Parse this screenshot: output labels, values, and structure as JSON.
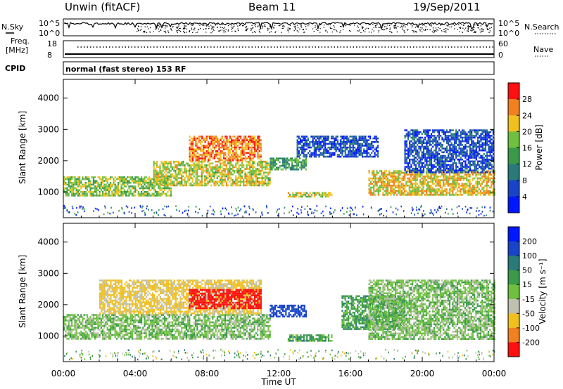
{
  "header": {
    "radar": "Unwin (fitACF)",
    "beam": "Beam 11",
    "date": "19/Sep/2011"
  },
  "aux_panels": {
    "nsky_label": "N.Sky",
    "nsearch_label": "N.Search",
    "nsky_ticks": [
      "10^5",
      "10^0"
    ],
    "nsearch_ticks": [
      "10^5",
      "10^0"
    ],
    "freq_label_line1": "Freq.",
    "freq_label_line2": "[MHz]",
    "freq_ticks": [
      "18",
      "8"
    ],
    "nave_label": "Nave",
    "nave_ticks": [
      "60",
      "0"
    ],
    "cpid_label": "CPID",
    "cpid_text": "normal (fast stereo) 153 RF"
  },
  "chart_data": [
    {
      "type": "heatmap",
      "name": "power-panel",
      "ylabel": "Slant Range [km]",
      "xlabel": "Time UT",
      "x_ticks": [
        "00:00",
        "04:00",
        "08:00",
        "12:00",
        "16:00",
        "20:00",
        "00:00"
      ],
      "x_hours": [
        0,
        24
      ],
      "y_ticks": [
        1000,
        2000,
        3000,
        4000
      ],
      "ylim": [
        180,
        4600
      ],
      "colorbar": {
        "label": "Power [dB]",
        "ticks": [
          "28",
          "24",
          "20",
          "16",
          "12",
          "8",
          "4"
        ],
        "colors": [
          "#0018ff",
          "#1844c8",
          "#2a7a7a",
          "#3a9a4a",
          "#6fc040",
          "#f0c020",
          "#f08020",
          "#ff1010"
        ]
      },
      "echo_regions": [
        {
          "t_start": 0.0,
          "t_end": 6.0,
          "r_low": 900,
          "r_high": 1500,
          "dB": 18
        },
        {
          "t_start": 5.0,
          "t_end": 11.5,
          "r_low": 1200,
          "r_high": 2000,
          "dB": 20
        },
        {
          "t_start": 7.0,
          "t_end": 11.0,
          "r_low": 2000,
          "r_high": 2800,
          "dB": 26
        },
        {
          "t_start": 11.5,
          "t_end": 13.5,
          "r_low": 1700,
          "r_high": 2100,
          "dB": 14
        },
        {
          "t_start": 12.5,
          "t_end": 15.0,
          "r_low": 850,
          "r_high": 1000,
          "dB": 20
        },
        {
          "t_start": 13.0,
          "t_end": 17.5,
          "r_low": 2100,
          "r_high": 2800,
          "dB": 6
        },
        {
          "t_start": 17.0,
          "t_end": 24.0,
          "r_low": 900,
          "r_high": 1700,
          "dB": 22
        },
        {
          "t_start": 19.0,
          "t_end": 24.0,
          "r_low": 1600,
          "r_high": 3000,
          "dB": 6
        }
      ]
    },
    {
      "type": "heatmap",
      "name": "velocity-panel",
      "ylabel": "Slant Range [km]",
      "xlabel": "Time UT",
      "x_ticks": [
        "00:00",
        "04:00",
        "08:00",
        "12:00",
        "16:00",
        "20:00",
        "00:00"
      ],
      "x_hours": [
        0,
        24
      ],
      "y_ticks": [
        1000,
        2000,
        3000,
        4000
      ],
      "ylim": [
        180,
        4600
      ],
      "colorbar": {
        "label": "Velocity [m s⁻¹]",
        "ticks": [
          "200",
          "100",
          "50",
          "15",
          "-15",
          "-50",
          "-100",
          "-200"
        ],
        "colors": [
          "#0018ff",
          "#1844c8",
          "#2a7a7a",
          "#3a9a4a",
          "#6fc040",
          "#c0c0b0",
          "#f0c020",
          "#f08020",
          "#ff1010"
        ]
      },
      "echo_regions": [
        {
          "t_start": 0.0,
          "t_end": 11.5,
          "r_low": 900,
          "r_high": 1700,
          "velocity": 0
        },
        {
          "t_start": 2.0,
          "t_end": 11.0,
          "r_low": 1700,
          "r_high": 2800,
          "velocity": -60
        },
        {
          "t_start": 7.0,
          "t_end": 11.0,
          "r_low": 1900,
          "r_high": 2500,
          "velocity": -250
        },
        {
          "t_start": 11.5,
          "t_end": 13.5,
          "r_low": 1600,
          "r_high": 2000,
          "velocity": 150
        },
        {
          "t_start": 12.5,
          "t_end": 15.0,
          "r_low": 850,
          "r_high": 1050,
          "velocity": 30
        },
        {
          "t_start": 15.5,
          "t_end": 19.0,
          "r_low": 1200,
          "r_high": 2300,
          "velocity": 30
        },
        {
          "t_start": 17.0,
          "t_end": 24.0,
          "r_low": 900,
          "r_high": 2800,
          "velocity": 0
        }
      ]
    }
  ]
}
